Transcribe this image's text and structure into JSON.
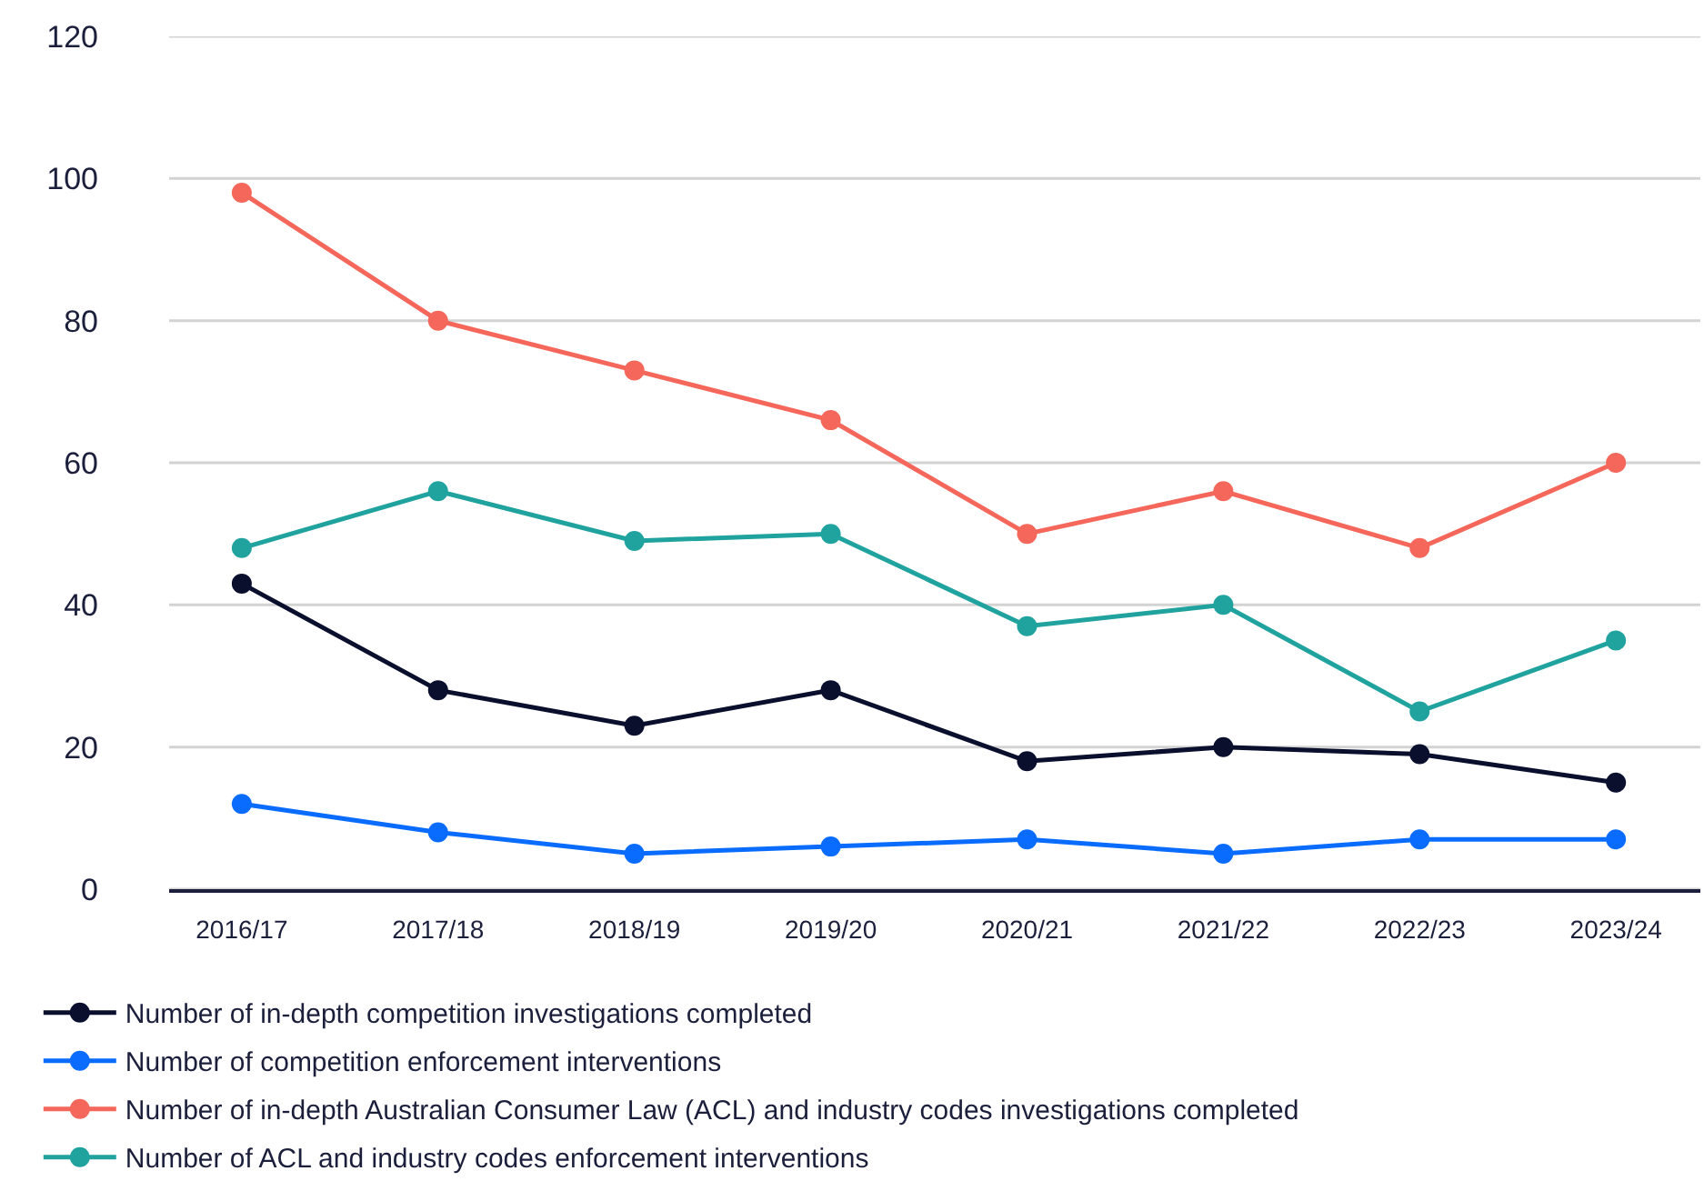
{
  "chart_data": {
    "type": "line",
    "categories": [
      "2016/17",
      "2017/18",
      "2018/19",
      "2019/20",
      "2020/21",
      "2021/22",
      "2022/23",
      "2023/24"
    ],
    "series": [
      {
        "name": "Number of in-depth competition investigations completed",
        "color": "#0b0f2e",
        "values": [
          43,
          28,
          23,
          28,
          18,
          20,
          19,
          15
        ]
      },
      {
        "name": "Number of competition enforcement interventions",
        "color": "#0a6cff",
        "values": [
          12,
          8,
          5,
          6,
          7,
          5,
          7,
          7
        ]
      },
      {
        "name": "Number of in-depth Australian Consumer Law (ACL) and industry codes investigations completed",
        "color": "#f4675a",
        "values": [
          98,
          80,
          73,
          66,
          50,
          56,
          48,
          60
        ]
      },
      {
        "name": "Number of ACL and industry codes enforcement interventions",
        "color": "#20a39e",
        "values": [
          48,
          56,
          49,
          50,
          37,
          40,
          25,
          35
        ]
      }
    ],
    "ylim": [
      0,
      120
    ],
    "yticks": [
      0,
      20,
      40,
      60,
      80,
      100,
      120
    ],
    "grid": "y",
    "legend": "bottom",
    "marker": "circle",
    "line_style": "solid"
  }
}
